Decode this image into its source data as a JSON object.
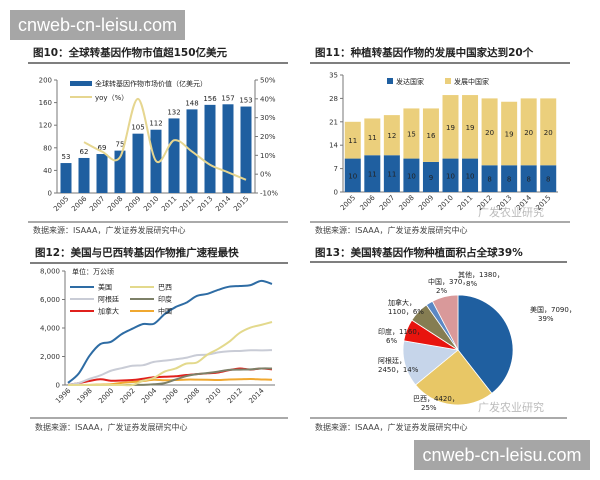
{
  "watermark": {
    "site": "cnweb-cn-leisu.com",
    "wechat": "广发农业研究"
  },
  "chart_data": [
    {
      "type": "bar",
      "title": "图10：全球转基因作物市值超150亿美元",
      "source": "数据来源：ISAAA，广发证券发展研究中心",
      "categories": [
        "2005",
        "2006",
        "2007",
        "2008",
        "2009",
        "2010",
        "2011",
        "2012",
        "2013",
        "2014",
        "2015"
      ],
      "ylim": [
        0,
        200
      ],
      "yticks": [
        "0",
        "40",
        "80",
        "120",
        "160",
        "200"
      ],
      "y2lim": [
        -10,
        50
      ],
      "y2ticks": [
        "-10%",
        "0%",
        "10%",
        "20%",
        "30%",
        "40%",
        "50%"
      ],
      "series": [
        {
          "name": "全球转基因作物市场价值（亿美元）",
          "type": "bar",
          "color": "#1f5fa0",
          "values": [
            53,
            62,
            69,
            75,
            105,
            112,
            132,
            148,
            156,
            157,
            153
          ]
        },
        {
          "name": "yoy（%）",
          "type": "line",
          "axis": "right",
          "color": "#e6d690",
          "values": [
            null,
            17,
            12,
            9,
            40,
            7,
            18,
            12,
            5,
            1,
            -3
          ]
        }
      ],
      "legend": "top-left",
      "grid": false
    },
    {
      "type": "bar",
      "stacked": true,
      "title": "图11：种植转基因作物的发展中国家达到20个",
      "source": "数据来源：ISAAA，广发证券发展研究中心",
      "categories": [
        "2005",
        "2006",
        "2007",
        "2008",
        "2009",
        "2010",
        "2011",
        "2012",
        "2013",
        "2014",
        "2015"
      ],
      "ylim": [
        0,
        35
      ],
      "yticks": [
        "0",
        "7",
        "14",
        "21",
        "28",
        "35"
      ],
      "series": [
        {
          "name": "发达国家",
          "color": "#1f5fa0",
          "values": [
            10,
            11,
            11,
            10,
            9,
            10,
            10,
            8,
            8,
            8,
            8
          ]
        },
        {
          "name": "发展中国家",
          "color": "#ebcf7c",
          "values": [
            11,
            11,
            12,
            15,
            16,
            19,
            19,
            20,
            19,
            20,
            20
          ]
        }
      ],
      "legend": "top",
      "grid": false
    },
    {
      "type": "line",
      "title": "图12：美国与巴西转基因作物推广速程最快",
      "source": "数据来源：ISAAA，广发证券发展研究中心",
      "unit": "单位：万公顷",
      "x": [
        1996,
        1997,
        1998,
        1999,
        2000,
        2001,
        2002,
        2003,
        2004,
        2005,
        2006,
        2007,
        2008,
        2009,
        2010,
        2011,
        2012,
        2013,
        2014,
        2015
      ],
      "xticks": [
        "1996",
        "1998",
        "2000",
        "2002",
        "2004",
        "2006",
        "2008",
        "2010",
        "2012",
        "2014"
      ],
      "ylim": [
        0,
        8000
      ],
      "yticks": [
        "0",
        "2,000",
        "4,000",
        "6,000",
        "8,000"
      ],
      "series": [
        {
          "name": "美国",
          "color": "#2e6ca4",
          "values": [
            150,
            810,
            2050,
            2870,
            3030,
            3570,
            3950,
            4280,
            4300,
            4980,
            5460,
            5770,
            6250,
            6400,
            6680,
            6900,
            6950,
            7010,
            7310,
            7090
          ]
        },
        {
          "name": "巴西",
          "color": "#e3d98c",
          "values": [
            0,
            0,
            0,
            0,
            0,
            0,
            0,
            300,
            500,
            940,
            1150,
            1500,
            1580,
            2140,
            2540,
            3030,
            3660,
            4030,
            4220,
            4420
          ]
        },
        {
          "name": "阿根廷",
          "color": "#c9ccd6",
          "values": [
            10,
            140,
            430,
            670,
            1000,
            1180,
            1350,
            1390,
            1620,
            1710,
            1800,
            1910,
            2100,
            2130,
            2290,
            2370,
            2390,
            2440,
            2430,
            2450
          ]
        },
        {
          "name": "印度",
          "color": "#7d8068",
          "values": [
            0,
            0,
            0,
            0,
            0,
            0,
            5,
            10,
            50,
            130,
            380,
            620,
            760,
            840,
            940,
            1060,
            1080,
            1100,
            1160,
            1160
          ]
        },
        {
          "name": "加拿大",
          "color": "#e0201c",
          "values": [
            10,
            130,
            280,
            400,
            300,
            320,
            350,
            440,
            540,
            580,
            610,
            700,
            760,
            820,
            880,
            1040,
            1160,
            1080,
            1160,
            1100
          ]
        },
        {
          "name": "中国",
          "color": "#f0a830",
          "values": [
            0,
            3,
            10,
            30,
            50,
            150,
            210,
            280,
            370,
            330,
            350,
            380,
            380,
            370,
            350,
            390,
            400,
            420,
            390,
            370
          ]
        }
      ],
      "legend": "top-left",
      "grid": false
    },
    {
      "type": "pie",
      "title": "图13：美国转基因作物种植面积占全球39%",
      "source": "数据来源：ISAAA，广发证券发展研究中心",
      "slices": [
        {
          "name": "美国",
          "value": 7090,
          "pct": "39%",
          "label1": "美国，7090，",
          "label2": "39%",
          "color": "#1f5fa0"
        },
        {
          "name": "巴西",
          "value": 4420,
          "pct": "25%",
          "label1": "巴西，4420，",
          "label2": "25%",
          "color": "#e8c766"
        },
        {
          "name": "阿根廷",
          "value": 2450,
          "pct": "14%",
          "label1": "阿根廷，",
          "label2": "2450，14%",
          "color": "#c6d5ea"
        },
        {
          "name": "印度",
          "value": 1160,
          "pct": "6%",
          "label1": "印度，1160，",
          "label2": "6%",
          "color": "#e8140e"
        },
        {
          "name": "加拿大",
          "value": 1100,
          "pct": "6%",
          "label1": "加拿大，",
          "label2": "1100，6%",
          "color": "#857d52"
        },
        {
          "name": "中国",
          "value": 370,
          "pct": "2%",
          "label1": "中国，370，",
          "label2": "2%",
          "color": "#5b88c4"
        },
        {
          "name": "其他",
          "value": 1380,
          "pct": "8%",
          "label1": "其他，1380，",
          "label2": "8%",
          "color": "#d9999a"
        }
      ]
    }
  ]
}
